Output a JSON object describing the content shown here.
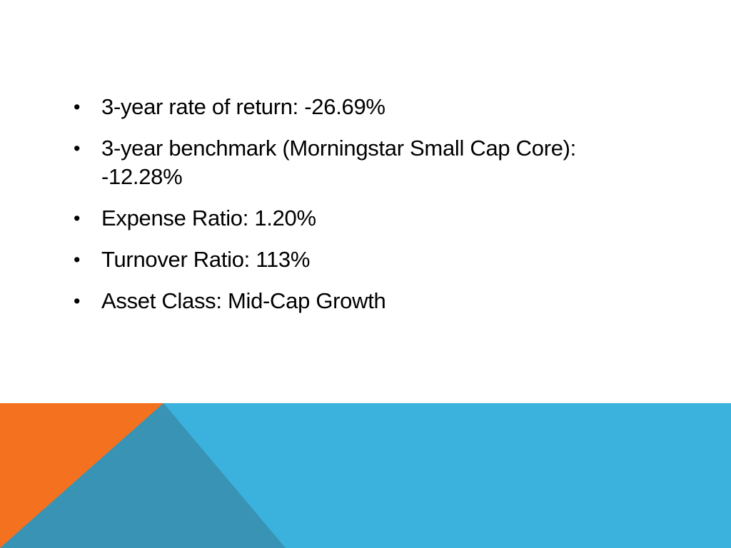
{
  "slide": {
    "bullets": [
      {
        "text": "3-year rate of return: -26.69%"
      },
      {
        "text": "3-year benchmark (Morningstar Small Cap Core): -12.28%"
      },
      {
        "text": "Expense Ratio: 1.20%"
      },
      {
        "text": "Turnover Ratio: 113%"
      },
      {
        "text": "Asset Class: Mid-Cap Growth"
      }
    ],
    "bullet_symbol": "•"
  },
  "colors": {
    "background": "#ffffff",
    "text": "#000000",
    "blue_band": "#3bb1de",
    "orange_triangle": "#f4711f",
    "overlap_triangle": "#3893b4"
  }
}
